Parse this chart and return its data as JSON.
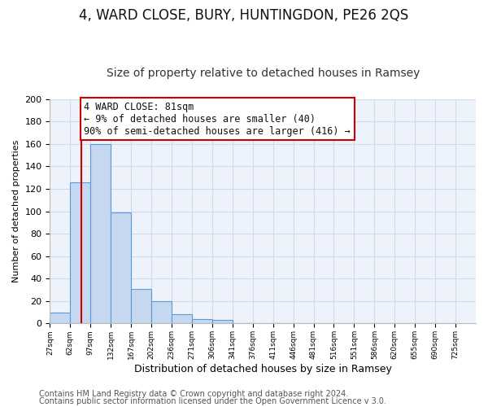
{
  "title": "4, WARD CLOSE, BURY, HUNTINGDON, PE26 2QS",
  "subtitle": "Size of property relative to detached houses in Ramsey",
  "xlabel": "Distribution of detached houses by size in Ramsey",
  "ylabel": "Number of detached properties",
  "bin_labels": [
    "27sqm",
    "62sqm",
    "97sqm",
    "132sqm",
    "167sqm",
    "202sqm",
    "236sqm",
    "271sqm",
    "306sqm",
    "341sqm",
    "376sqm",
    "411sqm",
    "446sqm",
    "481sqm",
    "516sqm",
    "551sqm",
    "586sqm",
    "620sqm",
    "655sqm",
    "690sqm",
    "725sqm"
  ],
  "bar_values": [
    10,
    126,
    160,
    99,
    31,
    20,
    8,
    4,
    3,
    0,
    0,
    0,
    0,
    0,
    0,
    0,
    0,
    0,
    0,
    0
  ],
  "bar_color": "#c5d8f0",
  "bar_edge_color": "#5b9bd5",
  "vline_color": "#cc0000",
  "vline_x": 1.55,
  "ylim": [
    0,
    200
  ],
  "yticks": [
    0,
    20,
    40,
    60,
    80,
    100,
    120,
    140,
    160,
    180,
    200
  ],
  "annotation_title": "4 WARD CLOSE: 81sqm",
  "annotation_line1": "← 9% of detached houses are smaller (40)",
  "annotation_line2": "90% of semi-detached houses are larger (416) →",
  "annotation_box_color": "#cc0000",
  "footer_line1": "Contains HM Land Registry data © Crown copyright and database right 2024.",
  "footer_line2": "Contains public sector information licensed under the Open Government Licence v 3.0.",
  "title_fontsize": 12,
  "subtitle_fontsize": 10,
  "annotation_fontsize": 8.5,
  "footer_fontsize": 7,
  "grid_color": "#d0daea",
  "background_color": "#eef2fa",
  "plot_bg_color": "#eef2fa"
}
